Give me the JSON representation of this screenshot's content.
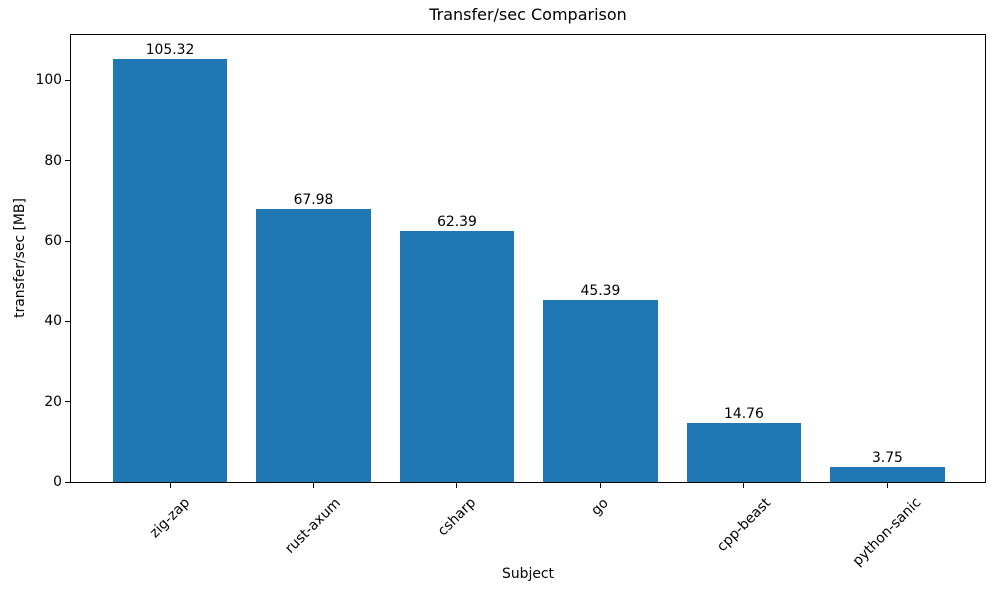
{
  "figure": {
    "title": "Transfer/sec Comparison",
    "xlabel": "Subject",
    "ylabel": "transfer/sec [MB]"
  },
  "chart_data": {
    "type": "bar",
    "title": "Transfer/sec Comparison",
    "xlabel": "Subject",
    "ylabel": "transfer/sec [MB]",
    "categories": [
      "zig-zap",
      "rust-axum",
      "csharp",
      "go",
      "cpp-beast",
      "python-sanic"
    ],
    "values": [
      105.32,
      67.98,
      62.39,
      45.39,
      14.76,
      3.75
    ],
    "value_labels": [
      "105.32",
      "67.98",
      "62.39",
      "45.39",
      "14.76",
      "3.75"
    ],
    "yticks": [
      0,
      20,
      40,
      60,
      80,
      100
    ],
    "ylim": [
      0,
      111.3
    ],
    "xlim": [
      -0.69,
      5.68
    ],
    "bar_width": 0.8,
    "bar_color": "#1f77b4",
    "axis_color": "#000000",
    "text_color": "#000000",
    "background_color": "#ffffff",
    "grid": false,
    "legend": null,
    "xtick_rotation_deg": 45
  }
}
